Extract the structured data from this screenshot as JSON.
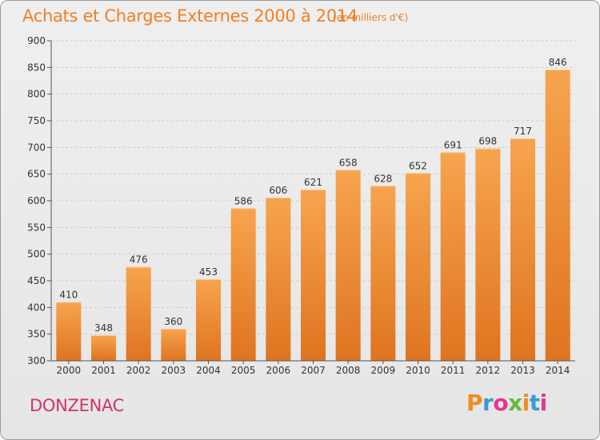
{
  "header": {
    "title": "Achats et Charges Externes 2000 à 2014",
    "subtitle": "(en milliers d'€)"
  },
  "footer": {
    "commune": "DONZENAC",
    "logo_text": "Proxiti",
    "logo_colors": [
      "#f28c1e",
      "#3a9bd6",
      "#e8368f",
      "#69b83c",
      "#f28c1e",
      "#3a9bd6",
      "#e8368f"
    ]
  },
  "colors": {
    "bar_top": "#f7a44e",
    "bar_bottom": "#df7420",
    "grid": "#cccccc",
    "axis": "#555555"
  },
  "chart_data": {
    "type": "bar",
    "categories": [
      "2000",
      "2001",
      "2002",
      "2003",
      "2004",
      "2005",
      "2006",
      "2007",
      "2008",
      "2009",
      "2010",
      "2011",
      "2012",
      "2013",
      "2014"
    ],
    "values": [
      410,
      348,
      476,
      360,
      453,
      586,
      606,
      621,
      658,
      628,
      652,
      691,
      698,
      717,
      846
    ],
    "title": "Achats et Charges Externes 2000 à 2014",
    "ylim": [
      300,
      900
    ],
    "yticks": [
      300,
      350,
      400,
      450,
      500,
      550,
      600,
      650,
      700,
      750,
      800,
      850,
      900
    ],
    "grid": "horizontal dashed",
    "data_labels": true
  }
}
